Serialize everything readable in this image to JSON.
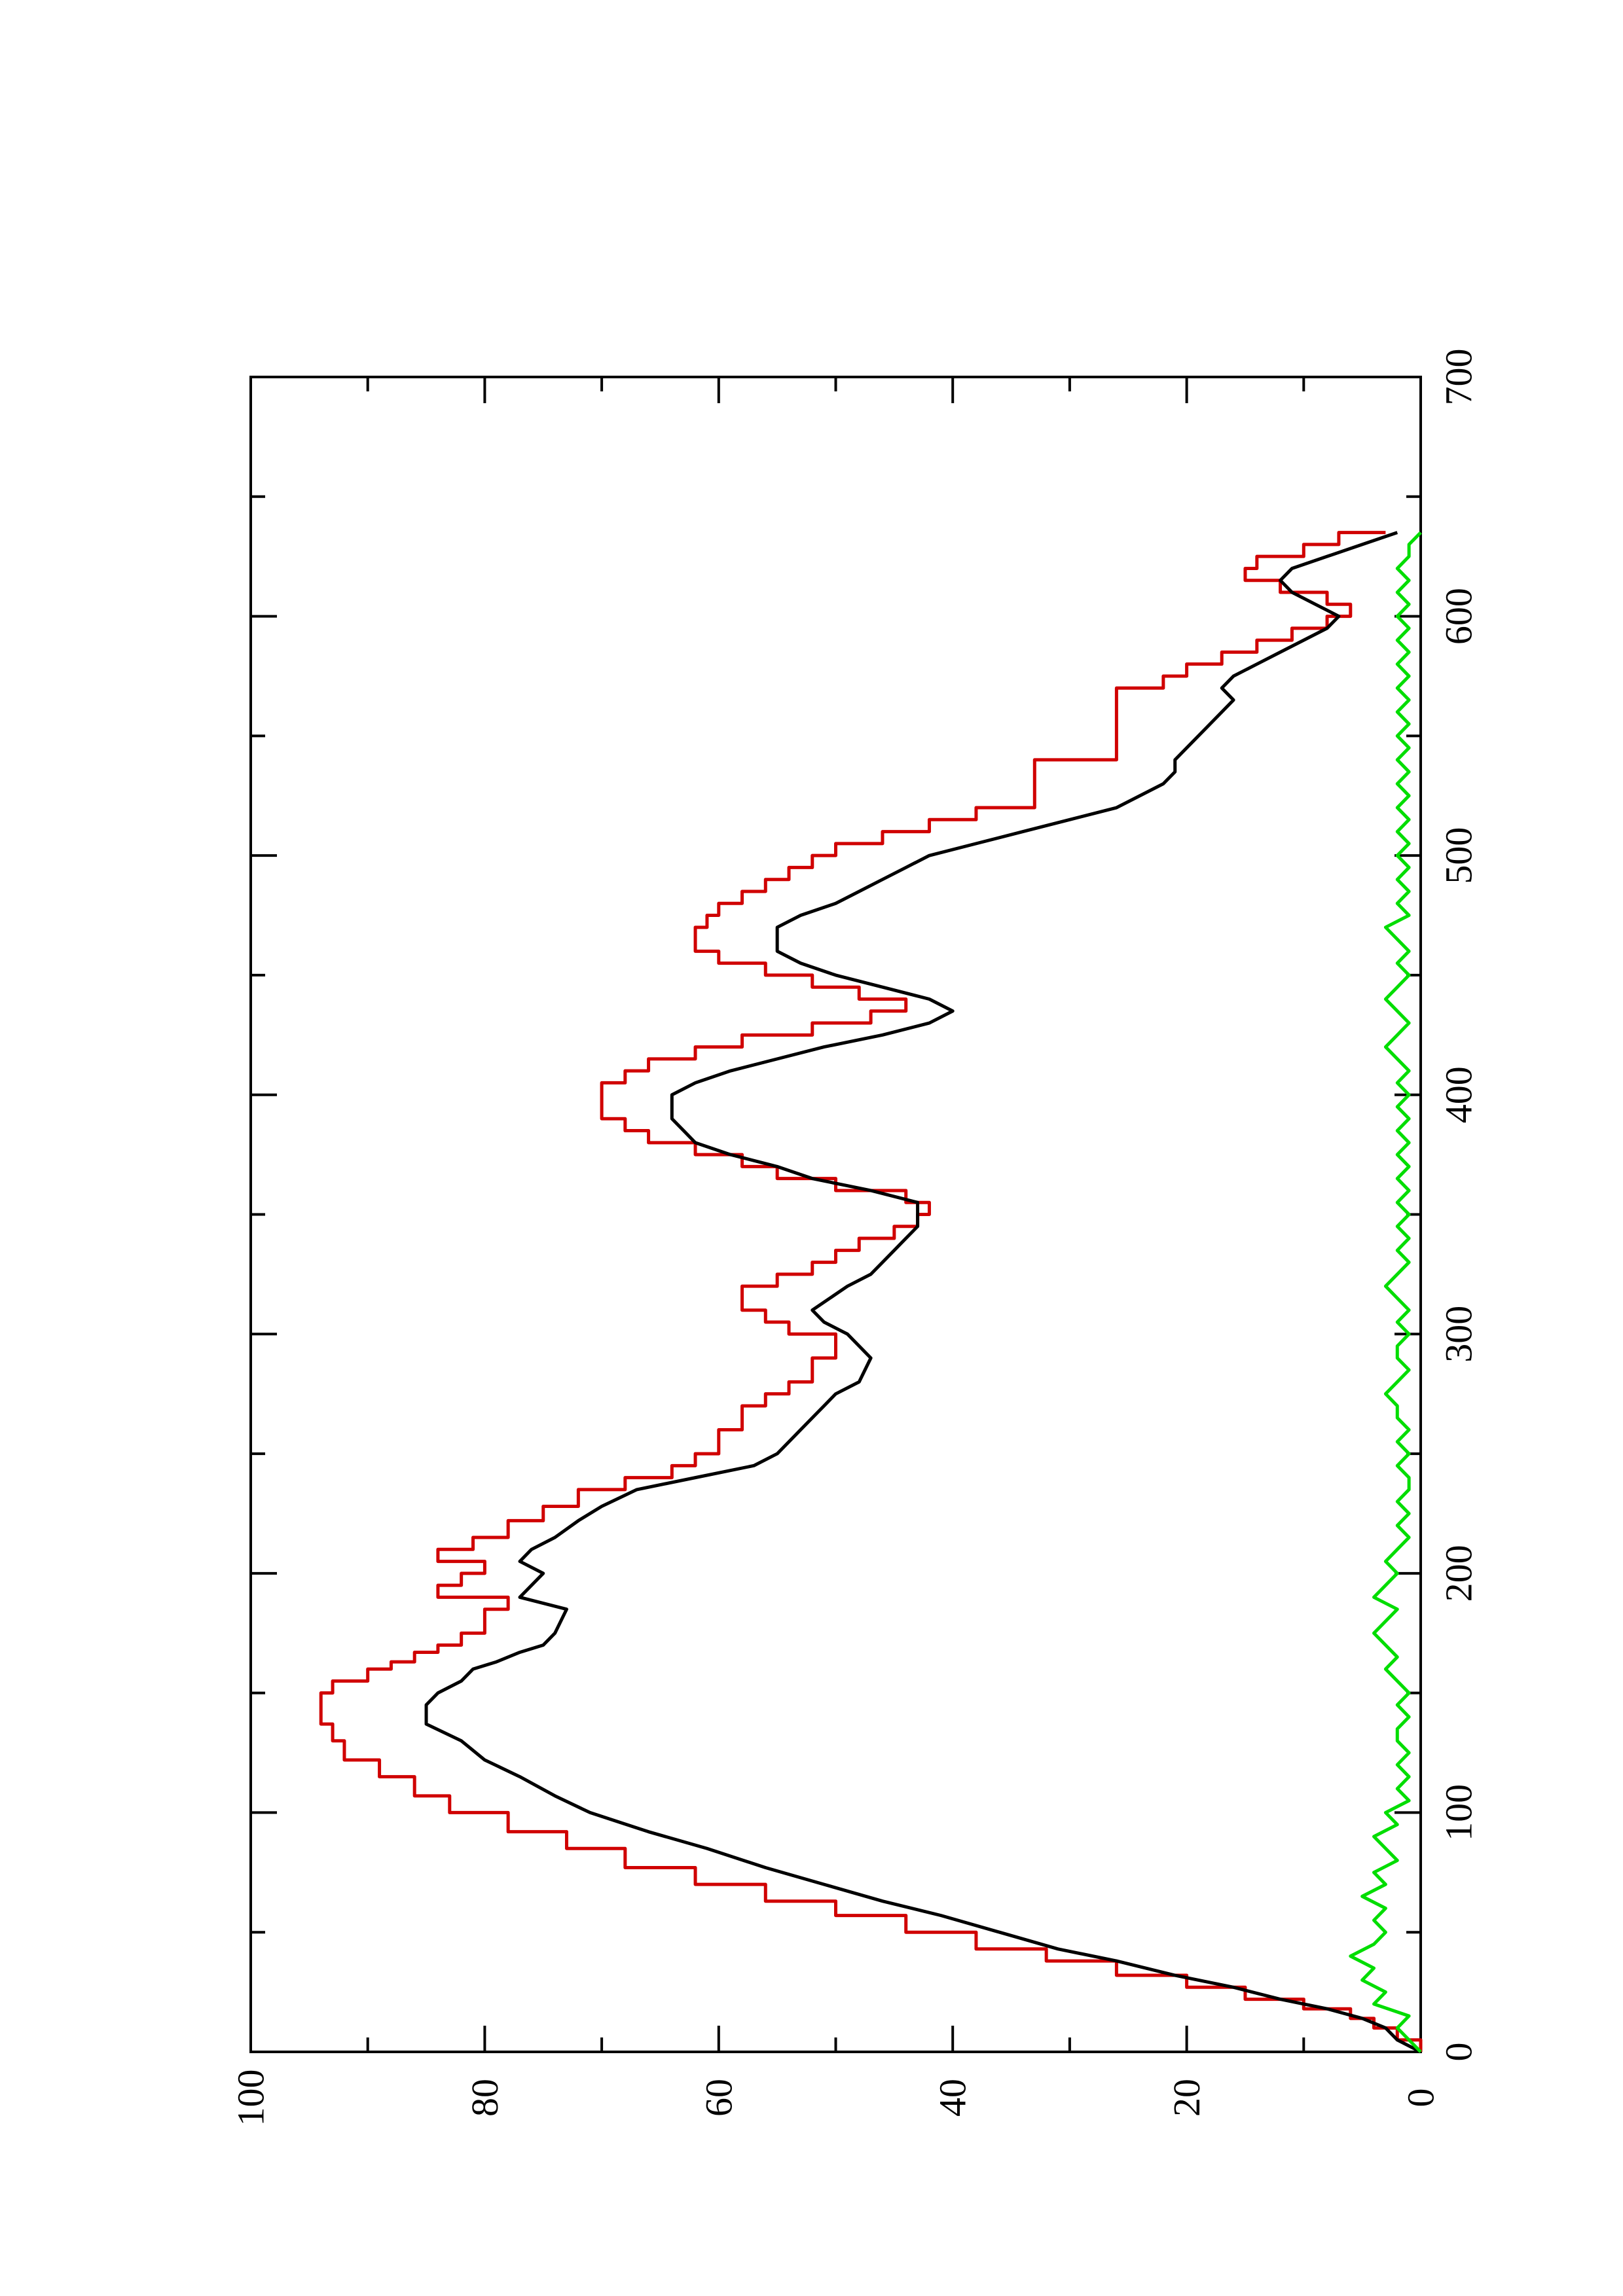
{
  "chart_data": {
    "type": "line",
    "orientation": "rotated-90-clockwise",
    "title": "",
    "xlabel": "",
    "ylabel": "",
    "xlim": [
      0,
      700
    ],
    "ylim": [
      0,
      100
    ],
    "x_ticks": [
      0,
      100,
      200,
      300,
      400,
      500,
      600,
      700
    ],
    "x_minor_ticks": [
      50,
      150,
      250,
      350,
      450,
      550,
      650
    ],
    "y_ticks": [
      0,
      20,
      40,
      60,
      80,
      100
    ],
    "y_minor_ticks": [
      10,
      30,
      50,
      70,
      90
    ],
    "grid": false,
    "legend": "none",
    "series": [
      {
        "color": "#d00000",
        "style": "step",
        "x": [
          0,
          5,
          10,
          14,
          18,
          22,
          27,
          32,
          38,
          43,
          50,
          57,
          63,
          70,
          77,
          85,
          92,
          100,
          107,
          115,
          122,
          130,
          137,
          145,
          150,
          155,
          160,
          163,
          167,
          170,
          175,
          185,
          190,
          195,
          200,
          205,
          210,
          215,
          222,
          228,
          235,
          240,
          245,
          250,
          260,
          270,
          275,
          280,
          290,
          300,
          305,
          310,
          320,
          325,
          330,
          335,
          340,
          345,
          350,
          355,
          360,
          365,
          370,
          375,
          380,
          385,
          390,
          395,
          400,
          405,
          410,
          415,
          420,
          425,
          430,
          435,
          440,
          445,
          450,
          455,
          460,
          465,
          470,
          475,
          480,
          485,
          490,
          495,
          500,
          505,
          510,
          515,
          520,
          530,
          535,
          540,
          545,
          555,
          565,
          570,
          575,
          580,
          585,
          590,
          595,
          600,
          605,
          610,
          615,
          620,
          625,
          630,
          635
        ],
        "y": [
          0,
          2,
          4,
          6,
          10,
          15,
          20,
          26,
          32,
          38,
          44,
          50,
          56,
          62,
          68,
          73,
          78,
          83,
          86,
          89,
          92,
          93,
          94,
          94,
          93,
          90,
          88,
          86,
          84,
          82,
          80,
          78,
          84,
          82,
          80,
          84,
          81,
          78,
          75,
          72,
          68,
          64,
          62,
          60,
          58,
          56,
          54,
          52,
          50,
          54,
          56,
          58,
          55,
          52,
          50,
          48,
          45,
          43,
          42,
          44,
          50,
          55,
          58,
          62,
          66,
          68,
          70,
          70,
          70,
          68,
          66,
          62,
          58,
          52,
          47,
          44,
          48,
          52,
          56,
          60,
          62,
          62,
          61,
          60,
          58,
          56,
          54,
          52,
          50,
          46,
          42,
          38,
          33,
          33,
          33,
          26,
          26,
          26,
          26,
          22,
          20,
          17,
          14,
          11,
          8,
          6,
          8,
          12,
          15,
          14,
          10,
          7,
          3
        ]
      },
      {
        "color": "#000000",
        "style": "line",
        "x": [
          0,
          5,
          10,
          14,
          18,
          22,
          27,
          32,
          38,
          43,
          50,
          57,
          63,
          70,
          77,
          85,
          92,
          100,
          107,
          115,
          122,
          130,
          137,
          145,
          150,
          155,
          160,
          163,
          167,
          170,
          175,
          185,
          190,
          195,
          200,
          205,
          210,
          215,
          222,
          228,
          235,
          240,
          245,
          250,
          260,
          270,
          275,
          280,
          290,
          300,
          305,
          310,
          320,
          325,
          330,
          335,
          340,
          345,
          350,
          355,
          360,
          365,
          370,
          375,
          380,
          385,
          390,
          395,
          400,
          405,
          410,
          415,
          420,
          425,
          430,
          435,
          440,
          445,
          450,
          455,
          460,
          465,
          470,
          475,
          480,
          485,
          490,
          495,
          500,
          505,
          510,
          515,
          520,
          530,
          535,
          540,
          545,
          555,
          565,
          570,
          575,
          580,
          585,
          590,
          595,
          600,
          605,
          610,
          615,
          620,
          625,
          630,
          635
        ],
        "y": [
          0,
          2,
          3,
          5,
          8,
          12,
          16,
          21,
          26,
          31,
          36,
          41,
          46,
          51,
          56,
          61,
          66,
          71,
          74,
          77,
          80,
          82,
          85,
          85,
          84,
          82,
          81,
          79,
          77,
          75,
          74,
          73,
          77,
          76,
          75,
          77,
          76,
          74,
          72,
          70,
          67,
          62,
          57,
          55,
          53,
          51,
          50,
          48,
          47,
          49,
          51,
          52,
          49,
          47,
          46,
          45,
          44,
          43,
          43,
          43,
          47,
          52,
          55,
          59,
          62,
          63,
          64,
          64,
          64,
          62,
          59,
          55,
          51,
          46,
          42,
          40,
          42,
          46,
          50,
          53,
          55,
          55,
          55,
          53,
          50,
          48,
          46,
          44,
          42,
          38,
          34,
          30,
          26,
          22,
          21,
          21,
          20,
          18,
          16,
          17,
          16,
          14,
          12,
          10,
          8,
          7,
          9,
          11,
          12,
          11,
          8,
          5,
          2
        ]
      },
      {
        "color": "#00dd00",
        "style": "line",
        "x": [
          0,
          5,
          10,
          15,
          20,
          25,
          30,
          35,
          40,
          45,
          50,
          55,
          60,
          65,
          70,
          75,
          80,
          85,
          90,
          95,
          100,
          105,
          110,
          115,
          120,
          125,
          130,
          135,
          140,
          145,
          150,
          155,
          160,
          165,
          170,
          175,
          180,
          185,
          190,
          195,
          200,
          205,
          210,
          215,
          220,
          225,
          230,
          235,
          240,
          245,
          250,
          255,
          260,
          265,
          270,
          275,
          280,
          285,
          290,
          295,
          300,
          305,
          310,
          315,
          320,
          325,
          330,
          335,
          340,
          345,
          350,
          355,
          360,
          365,
          370,
          375,
          380,
          385,
          390,
          395,
          400,
          405,
          410,
          415,
          420,
          425,
          430,
          435,
          440,
          445,
          450,
          455,
          460,
          465,
          470,
          475,
          480,
          485,
          490,
          495,
          500,
          505,
          510,
          515,
          520,
          525,
          530,
          535,
          540,
          545,
          550,
          555,
          560,
          565,
          570,
          575,
          580,
          585,
          590,
          595,
          600,
          605,
          610,
          615,
          620,
          625,
          630,
          635
        ],
        "y": [
          0,
          1,
          2,
          1,
          4,
          3,
          5,
          4,
          6,
          4,
          3,
          4,
          3,
          5,
          3,
          4,
          2,
          3,
          4,
          2,
          3,
          1,
          2,
          1,
          2,
          1,
          2,
          2,
          1,
          2,
          1,
          2,
          3,
          2,
          3,
          4,
          3,
          2,
          4,
          3,
          2,
          3,
          2,
          1,
          2,
          1,
          2,
          1,
          1,
          2,
          1,
          2,
          1,
          2,
          2,
          3,
          2,
          1,
          2,
          2,
          1,
          2,
          1,
          2,
          3,
          2,
          1,
          2,
          1,
          2,
          1,
          2,
          1,
          2,
          1,
          2,
          1,
          2,
          1,
          2,
          1,
          2,
          1,
          2,
          3,
          2,
          1,
          2,
          3,
          2,
          1,
          2,
          1,
          2,
          3,
          1,
          2,
          1,
          2,
          1,
          2,
          1,
          2,
          1,
          2,
          1,
          2,
          1,
          2,
          1,
          2,
          1,
          2,
          1,
          2,
          1,
          2,
          1,
          2,
          1,
          2,
          1,
          2,
          1,
          2,
          1,
          1,
          0
        ]
      }
    ]
  }
}
